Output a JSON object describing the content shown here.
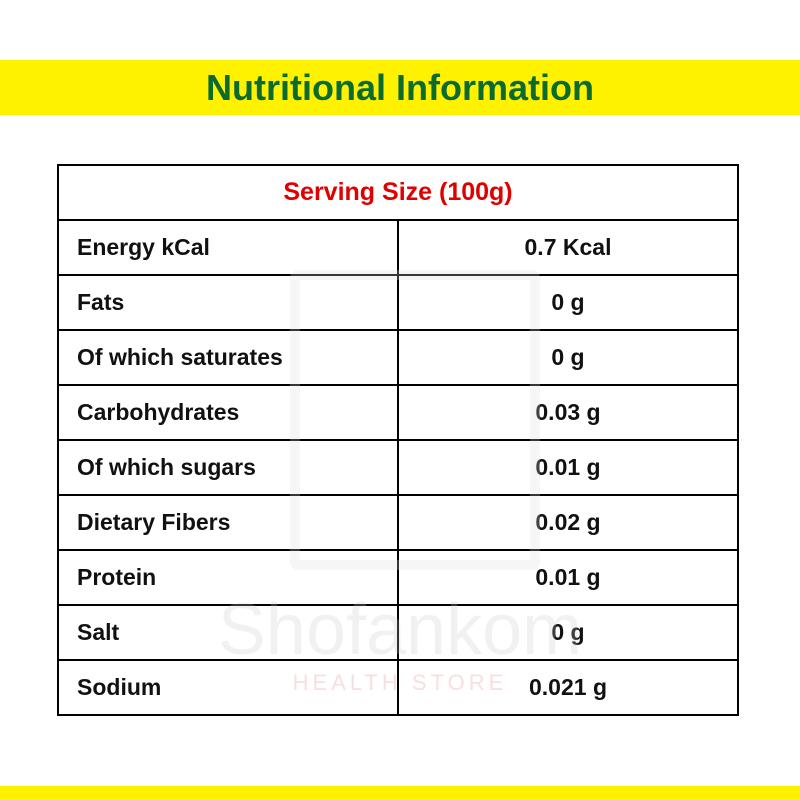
{
  "header": {
    "title": "Nutritional Information"
  },
  "table": {
    "caption": "Serving Size (100g)",
    "rows": [
      [
        "Energy kCal",
        "0.7 Kcal"
      ],
      [
        "Fats",
        "0 g"
      ],
      [
        "Of which saturates",
        "0 g"
      ],
      [
        "Carbohydrates",
        "0.03 g"
      ],
      [
        "Of which sugars",
        "0.01 g"
      ],
      [
        "Dietary Fibers",
        "0.02 g"
      ],
      [
        "Protein",
        "0.01 g"
      ],
      [
        "Salt",
        "0 g"
      ],
      [
        "Sodium",
        "0.021 g"
      ]
    ]
  },
  "watermark": {
    "name": "Shofankom",
    "tagline": "HEALTH STORE"
  }
}
